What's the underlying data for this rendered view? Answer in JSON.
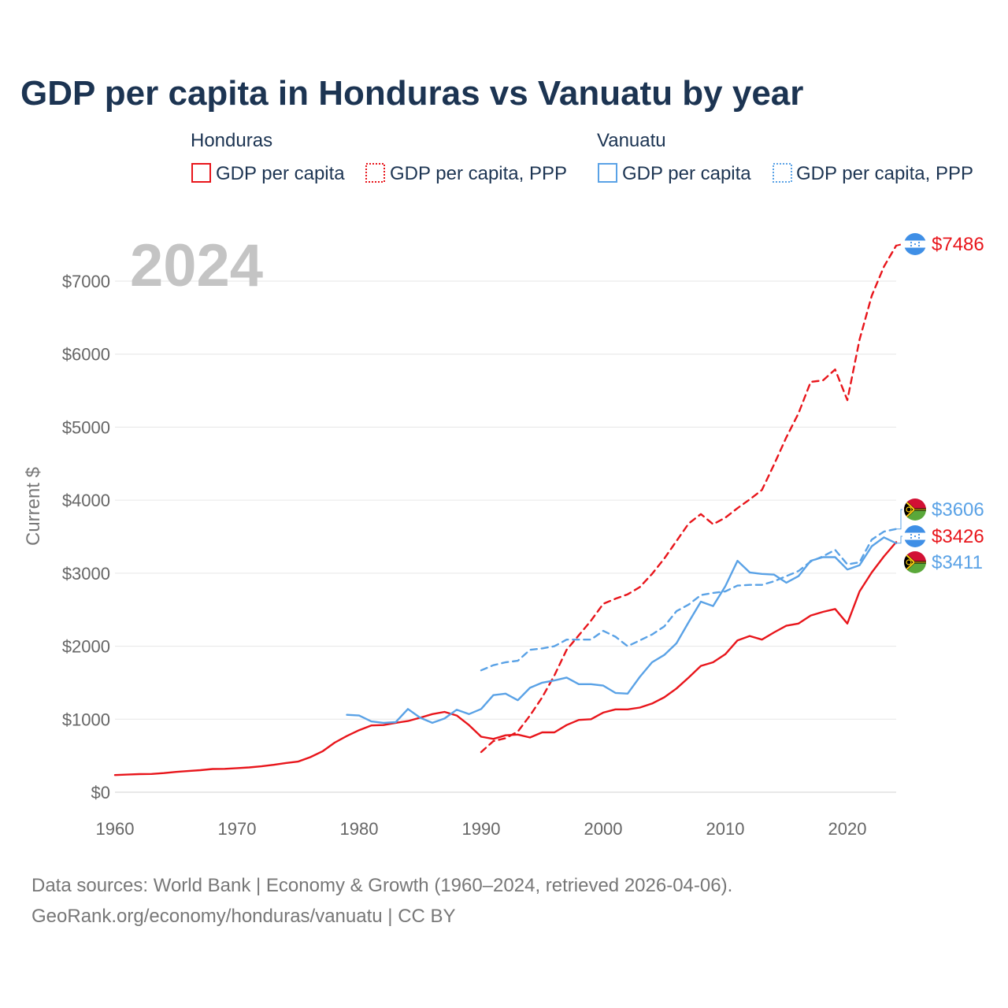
{
  "page": {
    "title": "GDP per capita in Honduras vs Vanuatu by year",
    "year_watermark": "2024",
    "source_line1": "Data sources: World Bank | Economy & Growth (1960–2024, retrieved 2026-04-06).",
    "source_line2": "GeoRank.org/economy/honduras/vanuatu | CC BY"
  },
  "legend": {
    "groups": [
      {
        "name": "Honduras",
        "color": "#e8151b",
        "items": [
          {
            "label": "GDP per capita",
            "style": "solid"
          },
          {
            "label": "GDP per capita, PPP",
            "style": "dashed"
          }
        ]
      },
      {
        "name": "Vanuatu",
        "color": "#5aa2e6",
        "items": [
          {
            "label": "GDP per capita",
            "style": "solid"
          },
          {
            "label": "GDP per capita, PPP",
            "style": "dashed"
          }
        ]
      }
    ]
  },
  "end_labels": [
    {
      "text": "$7486",
      "color": "#e8151b",
      "flag": "honduras"
    },
    {
      "text": "$3606",
      "color": "#5aa2e6",
      "flag": "vanuatu"
    },
    {
      "text": "$3426",
      "color": "#e8151b",
      "flag": "honduras"
    },
    {
      "text": "$3411",
      "color": "#5aa2e6",
      "flag": "vanuatu"
    }
  ],
  "chart_data": {
    "type": "line",
    "title": "GDP per capita in Honduras vs Vanuatu by year",
    "xlabel": "",
    "ylabel": "Current $",
    "xlim": [
      1960,
      2024
    ],
    "ylim": [
      0,
      7500
    ],
    "x_ticks": [
      1960,
      1970,
      1980,
      1990,
      2000,
      2010,
      2020
    ],
    "y_ticks": [
      0,
      1000,
      2000,
      3000,
      4000,
      5000,
      6000,
      7000
    ],
    "y_tick_labels": [
      "$0",
      "$1000",
      "$2000",
      "$3000",
      "$4000",
      "$5000",
      "$6000",
      "$7000"
    ],
    "grid": true,
    "series": [
      {
        "name": "Honduras GDP per capita",
        "color": "#e8151b",
        "style": "solid",
        "start": 1960,
        "values": [
          235,
          242,
          248,
          250,
          262,
          278,
          290,
          302,
          318,
          320,
          330,
          340,
          355,
          375,
          400,
          420,
          480,
          560,
          680,
          770,
          850,
          915,
          920,
          950,
          975,
          1020,
          1070,
          1100,
          1050,
          920,
          760,
          730,
          780,
          790,
          750,
          820,
          820,
          920,
          990,
          1000,
          1090,
          1135,
          1135,
          1160,
          1215,
          1300,
          1420,
          1570,
          1730,
          1780,
          1890,
          2080,
          2140,
          2090,
          2190,
          2280,
          2310,
          2420,
          2470,
          2510,
          2310,
          2750,
          3010,
          3230,
          3426
        ]
      },
      {
        "name": "Honduras GDP per capita, PPP",
        "color": "#e8151b",
        "style": "dashed",
        "start": 1990,
        "values": [
          550,
          700,
          740,
          830,
          1050,
          1300,
          1600,
          1950,
          2150,
          2350,
          2580,
          2650,
          2710,
          2810,
          2990,
          3200,
          3440,
          3680,
          3810,
          3670,
          3760,
          3890,
          4010,
          4140,
          4490,
          4860,
          5190,
          5620,
          5640,
          5790,
          5370,
          6200,
          6800,
          7200,
          7486
        ]
      },
      {
        "name": "Vanuatu GDP per capita",
        "color": "#5aa2e6",
        "style": "solid",
        "start": 1979,
        "values": [
          1060,
          1050,
          970,
          950,
          960,
          1140,
          1020,
          950,
          1010,
          1130,
          1070,
          1140,
          1330,
          1350,
          1260,
          1430,
          1500,
          1530,
          1570,
          1480,
          1480,
          1460,
          1360,
          1350,
          1580,
          1780,
          1880,
          2040,
          2330,
          2610,
          2550,
          2820,
          3170,
          3010,
          2990,
          2980,
          2870,
          2960,
          3170,
          3220,
          3220,
          3050,
          3110,
          3370,
          3490,
          3411
        ]
      },
      {
        "name": "Vanuatu GDP per capita, PPP",
        "color": "#5aa2e6",
        "style": "dashed",
        "start": 1990,
        "values": [
          1670,
          1740,
          1780,
          1800,
          1950,
          1970,
          2000,
          2090,
          2090,
          2090,
          2210,
          2130,
          2000,
          2080,
          2160,
          2270,
          2480,
          2570,
          2700,
          2730,
          2750,
          2830,
          2840,
          2840,
          2890,
          2960,
          3030,
          3160,
          3230,
          3320,
          3120,
          3150,
          3460,
          3570,
          3606
        ]
      }
    ]
  }
}
